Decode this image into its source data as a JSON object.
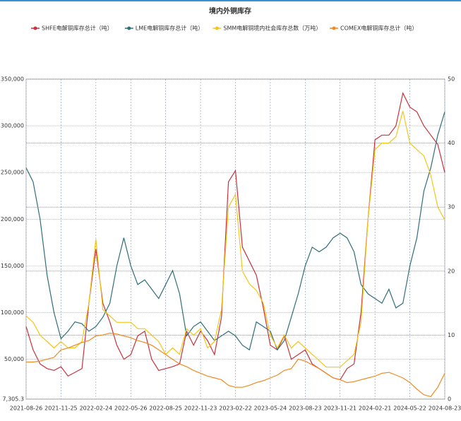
{
  "chart_data": {
    "type": "line",
    "title": "境内外铜库存",
    "categories": [
      "2021-08-26",
      null,
      null,
      null,
      null,
      "2021-11-25",
      null,
      null,
      null,
      null,
      "2022-02-24",
      null,
      null,
      null,
      null,
      "2022-05-26",
      null,
      null,
      null,
      null,
      "2022-08-25",
      null,
      null,
      null,
      null,
      "2022-11-23",
      null,
      null,
      null,
      null,
      "2023-02-22",
      null,
      null,
      null,
      null,
      "2023-05-24",
      null,
      null,
      null,
      null,
      "2023-08-23",
      null,
      null,
      null,
      null,
      "2023-11-21",
      null,
      null,
      null,
      null,
      "2024-02-21",
      null,
      null,
      null,
      null,
      "2024-05-22",
      null,
      null,
      null,
      null,
      "2024-08-23"
    ],
    "series": [
      {
        "name": "SHFE电解铜库存总计（吨）",
        "color": "#c8323c",
        "values": [
          85000,
          60000,
          45000,
          40000,
          38000,
          42000,
          32000,
          36000,
          40000,
          110000,
          168000,
          110000,
          90000,
          65000,
          50000,
          55000,
          75000,
          80000,
          50000,
          38000,
          40000,
          42000,
          45000,
          80000,
          65000,
          80000,
          70000,
          55000,
          95000,
          240000,
          252000,
          170000,
          155000,
          140000,
          105000,
          65000,
          60000,
          75000,
          50000,
          55000,
          60000,
          45000,
          40000,
          35000,
          30000,
          28000,
          40000,
          45000,
          100000,
          200000,
          285000,
          290000,
          290000,
          300000,
          335000,
          320000,
          315000,
          300000,
          290000,
          280000,
          250000
        ]
      },
      {
        "name": "LME电解铜库存总计（吨）",
        "color": "#2e6f7a",
        "values": [
          255000,
          240000,
          200000,
          140000,
          100000,
          72000,
          80000,
          90000,
          88000,
          80000,
          85000,
          95000,
          110000,
          150000,
          180000,
          150000,
          130000,
          135000,
          125000,
          115000,
          130000,
          145000,
          120000,
          75000,
          85000,
          90000,
          80000,
          70000,
          75000,
          80000,
          75000,
          65000,
          60000,
          90000,
          85000,
          80000,
          60000,
          70000,
          95000,
          120000,
          150000,
          170000,
          165000,
          170000,
          180000,
          185000,
          180000,
          165000,
          130000,
          120000,
          115000,
          110000,
          125000,
          105000,
          110000,
          150000,
          180000,
          230000,
          255000,
          290000,
          315000
        ]
      },
      {
        "name": "SMM电解铜境内社会库存总数（万吨）",
        "color": "#f5c518",
        "axis": "y2",
        "values": [
          13,
          12,
          10,
          9,
          8,
          9,
          8,
          8,
          9,
          15,
          25,
          14,
          13,
          12,
          12,
          12,
          11,
          11,
          10,
          9,
          7,
          8,
          7,
          11,
          10,
          11,
          8,
          9,
          14,
          30,
          32,
          20,
          18,
          17,
          15,
          10,
          8,
          10,
          8,
          9,
          8,
          7,
          6,
          5,
          5,
          5,
          6,
          7,
          12,
          28,
          39,
          40,
          40,
          41,
          45,
          40,
          39,
          38,
          35,
          30,
          28
        ]
      },
      {
        "name": "COMEX电解铜库存总计（吨）",
        "color": "#f08a24",
        "values": [
          47000,
          47000,
          48000,
          50000,
          52000,
          60000,
          62000,
          65000,
          68000,
          70000,
          75000,
          76000,
          78000,
          77000,
          75000,
          73000,
          70000,
          68000,
          65000,
          60000,
          55000,
          50000,
          45000,
          42000,
          38000,
          35000,
          32000,
          30000,
          28000,
          22000,
          20000,
          20000,
          22000,
          25000,
          27000,
          30000,
          33000,
          38000,
          40000,
          50000,
          48000,
          44000,
          40000,
          35000,
          30000,
          28000,
          25000,
          26000,
          28000,
          30000,
          32000,
          35000,
          36000,
          33000,
          30000,
          25000,
          18000,
          12000,
          10000,
          20000,
          35000
        ]
      }
    ],
    "ylim": [
      7305.3,
      350000
    ],
    "yticks": [
      {
        "value": 7305.3,
        "label": "7,305.3"
      },
      {
        "value": 50000,
        "label": "50,000"
      },
      {
        "value": 100000,
        "label": "100,000"
      },
      {
        "value": 150000,
        "label": "150,000"
      },
      {
        "value": 200000,
        "label": "200,000"
      },
      {
        "value": 250000,
        "label": "250,000"
      },
      {
        "value": 300000,
        "label": "300,000"
      },
      {
        "value": 350000,
        "label": "350,000"
      }
    ],
    "y2lim": [
      0,
      50
    ],
    "y2ticks": [
      0,
      10,
      20,
      30,
      40,
      50
    ],
    "grid": true,
    "legend": "top"
  }
}
